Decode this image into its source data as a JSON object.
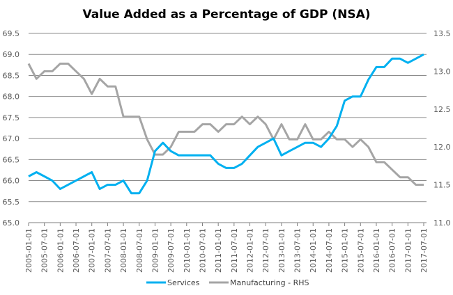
{
  "chart_data": {
    "type": "line",
    "title": "Value Added as a Percentage of GDP (NSA)",
    "xlabel": "",
    "ylabel": "",
    "y2label": "",
    "ylim": [
      65.0,
      69.5
    ],
    "y2lim": [
      11.0,
      13.5
    ],
    "yticks": [
      "69.5",
      "69.0",
      "68.5",
      "68.0",
      "67.5",
      "67.0",
      "66.5",
      "66.0",
      "65.5",
      "65.0"
    ],
    "y2ticks": [
      "13.5",
      "13.0",
      "12.5",
      "12.0",
      "11.5",
      "11.0"
    ],
    "grid": true,
    "legend": "bottom",
    "x_tick_labels": [
      "2005-01-01",
      "2005-07-01",
      "2006-01-01",
      "2006-07-01",
      "2007-01-01",
      "2007-07-01",
      "2008-01-01",
      "2008-07-01",
      "2009-01-01",
      "2009-07-01",
      "2010-01-01",
      "2010-07-01",
      "2011-01-01",
      "2011-07-01",
      "2012-01-01",
      "2012-07-01",
      "2013-01-01",
      "2013-07-01",
      "2014-01-01",
      "2014-07-01",
      "2015-01-01",
      "2015-07-01",
      "2016-01-01",
      "2016-07-01",
      "2017-01-01",
      "2017-07-01"
    ],
    "x_frequency": "quarterly",
    "series": [
      {
        "name": "Services",
        "axis": "left",
        "color": "#00B0F0",
        "values": [
          66.1,
          66.2,
          66.1,
          66.0,
          65.8,
          65.9,
          66.0,
          66.1,
          66.2,
          65.8,
          65.9,
          65.9,
          66.0,
          65.7,
          65.7,
          66.0,
          66.7,
          66.9,
          66.7,
          66.6,
          66.6,
          66.6,
          66.6,
          66.6,
          66.4,
          66.3,
          66.3,
          66.4,
          66.6,
          66.8,
          66.9,
          67.0,
          66.6,
          66.7,
          66.8,
          66.9,
          66.9,
          66.8,
          67.0,
          67.3,
          67.9,
          68.0,
          68.0,
          68.4,
          68.7,
          68.7,
          68.9,
          68.9,
          68.8,
          68.9,
          69.0
        ]
      },
      {
        "name": "Manufacturing - RHS",
        "axis": "right",
        "color": "#A5A5A5",
        "values": [
          13.1,
          12.9,
          13.0,
          13.0,
          13.1,
          13.1,
          13.0,
          12.9,
          12.7,
          12.9,
          12.8,
          12.8,
          12.4,
          12.4,
          12.4,
          12.1,
          11.9,
          11.9,
          12.0,
          12.2,
          12.2,
          12.2,
          12.3,
          12.3,
          12.2,
          12.3,
          12.3,
          12.4,
          12.3,
          12.4,
          12.3,
          12.1,
          12.3,
          12.1,
          12.1,
          12.3,
          12.1,
          12.1,
          12.2,
          12.1,
          12.1,
          12.0,
          12.1,
          12.0,
          11.8,
          11.8,
          11.7,
          11.6,
          11.6,
          11.5,
          11.5
        ]
      }
    ]
  }
}
